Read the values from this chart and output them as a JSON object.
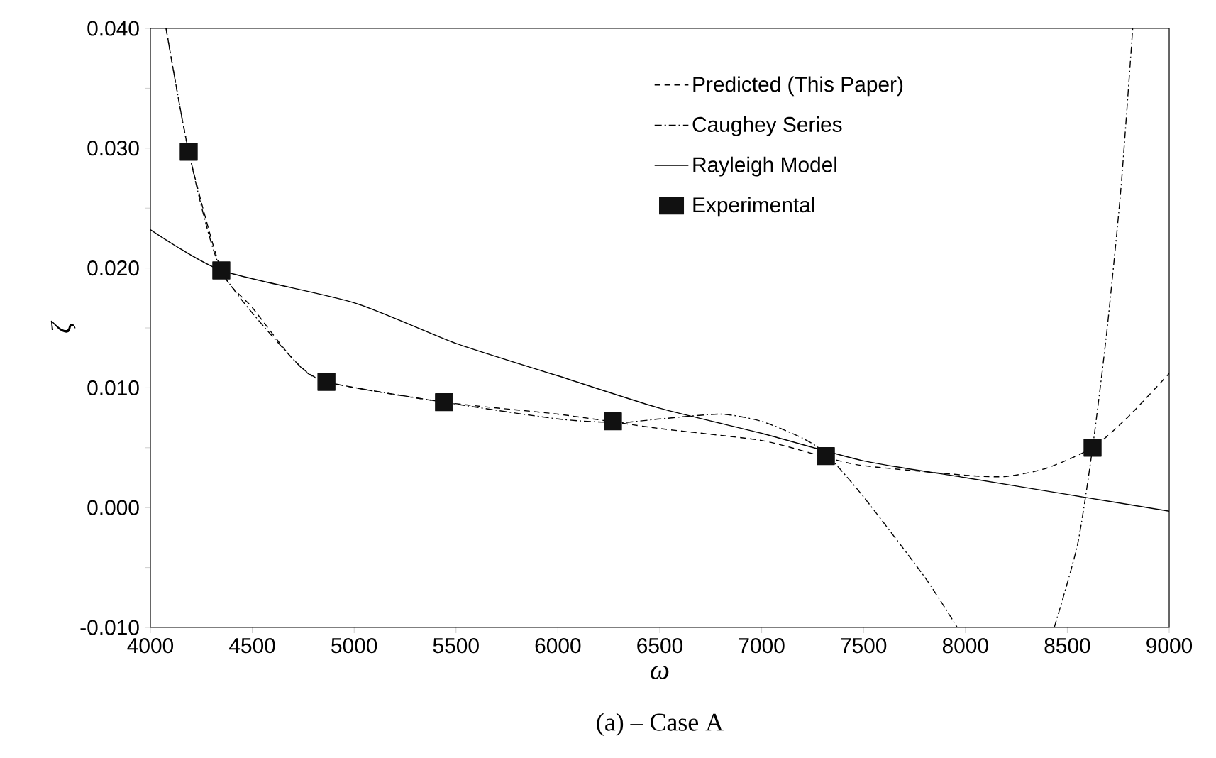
{
  "chart_data": {
    "type": "line",
    "xlabel": "ω",
    "ylabel": "ζ",
    "annotations": [
      "(a) – Case A"
    ],
    "xlim": [
      4000,
      9000
    ],
    "xticks": [
      4000,
      4500,
      5000,
      5500,
      6000,
      6500,
      7000,
      7500,
      8000,
      8500,
      9000
    ],
    "ylim": [
      -0.01,
      0.04
    ],
    "yticks": [
      {
        "value": -0.01,
        "label": "-0.010"
      },
      {
        "value": -0.005,
        "label": null
      },
      {
        "value": 0,
        "label": "0.000"
      },
      {
        "value": 0.005,
        "label": null
      },
      {
        "value": 0.01,
        "label": "0.010"
      },
      {
        "value": 0.015,
        "label": null
      },
      {
        "value": 0.02,
        "label": "0.020"
      },
      {
        "value": 0.025,
        "label": null
      },
      {
        "value": 0.03,
        "label": "0.030"
      },
      {
        "value": 0.035,
        "label": null
      },
      {
        "value": 0.04,
        "label": "0.040"
      }
    ],
    "grid": false,
    "legend": "top right",
    "series": [
      {
        "name": "Predicted (This Paper)",
        "color": "#000000",
        "line_style": "dashed",
        "marker": "none",
        "x": [
          4077,
          4188,
          4348,
          4500,
          4700,
          4864,
          5441,
          6000,
          6500,
          7000,
          7315,
          7500,
          8000,
          8200,
          8400,
          8624,
          8800,
          9000
        ],
        "values": [
          0.04,
          0.0297,
          0.0198,
          0.0167,
          0.0124,
          0.0105,
          0.0088,
          0.0078,
          0.0066,
          0.0056,
          0.0042,
          0.0035,
          0.0027,
          0.0026,
          0.0033,
          0.005,
          0.0076,
          0.0112
        ]
      },
      {
        "name": "Caughey Series",
        "color": "#000000",
        "line_style": "dashdot",
        "marker": "none",
        "x": [
          4077,
          4188,
          4348,
          4700,
          4864,
          5441,
          6000,
          6300,
          6500,
          6800,
          7000,
          7200,
          7315,
          7500,
          7800,
          7960,
          8200,
          8436,
          8550,
          8624,
          8694,
          8763,
          8821
        ],
        "values": [
          0.04,
          0.0297,
          0.0198,
          0.0124,
          0.0105,
          0.0088,
          0.0074,
          0.0071,
          0.0074,
          0.0078,
          0.0072,
          0.0058,
          0.0045,
          0.0009,
          -0.0058,
          -0.01,
          null,
          -0.01,
          -0.0031,
          0.005,
          0.0147,
          0.0266,
          0.04
        ]
      },
      {
        "name": "Rayleigh Model",
        "color": "#000000",
        "line_style": "solid",
        "marker": "none",
        "x": [
          4000,
          4348,
          5000,
          5500,
          6000,
          6500,
          7000,
          7500,
          8000,
          8500,
          9000
        ],
        "values": [
          0.0232,
          0.0198,
          0.0171,
          0.0137,
          0.011,
          0.0083,
          0.0062,
          0.0039,
          0.0025,
          0.0011,
          -0.0003
        ]
      },
      {
        "name": "Experimental",
        "type": "scatter",
        "color": "#111111",
        "marker": "square",
        "x": [
          4188,
          4348,
          4864,
          5441,
          6270,
          7315,
          8624
        ],
        "values": [
          0.0297,
          0.0198,
          0.0105,
          0.0088,
          0.0072,
          0.0043,
          0.005
        ]
      }
    ]
  }
}
